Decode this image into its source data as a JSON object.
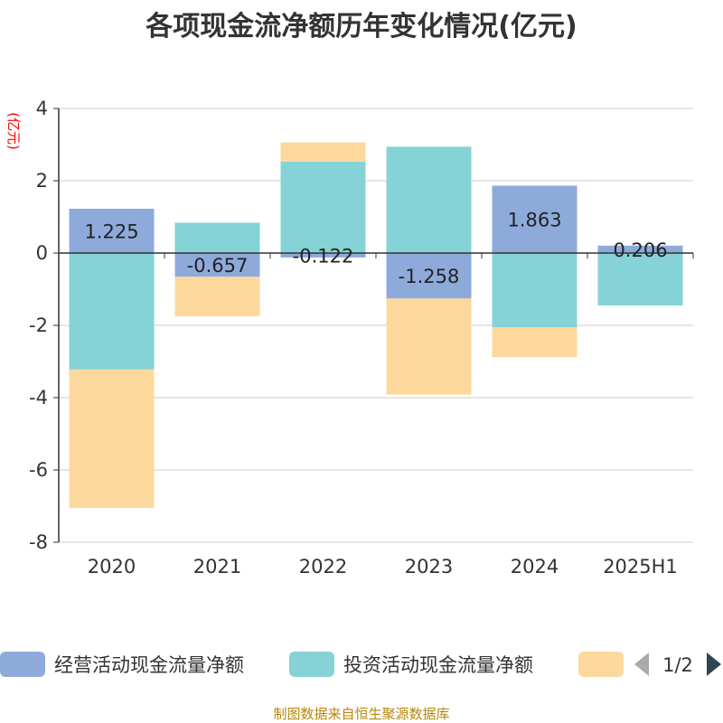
{
  "chart_data": {
    "type": "bar",
    "stacked": true,
    "title": "各项现金流净额历年变化情况(亿元)",
    "ylabel": "(亿元)",
    "categories": [
      "2020",
      "2021",
      "2022",
      "2023",
      "2024",
      "2025H1"
    ],
    "ylim": [
      -8,
      4
    ],
    "yticks": [
      4,
      2,
      0,
      -2,
      -4,
      -6,
      -8
    ],
    "grid": true,
    "series": [
      {
        "name": "经营活动现金流量净额",
        "color": "#8eaadb",
        "values": [
          1.225,
          -0.657,
          -0.122,
          -1.258,
          1.863,
          0.206
        ],
        "labels_shown": true
      },
      {
        "name": "投资活动现金流量净额",
        "color": "#85d3d6",
        "values": [
          -3.22,
          0.84,
          2.53,
          2.94,
          -2.05,
          -1.45
        ],
        "labels_shown": false
      },
      {
        "name": "",
        "color": "#fdd89d",
        "values": [
          -3.83,
          -1.09,
          0.53,
          -2.66,
          -0.83,
          0
        ],
        "labels_shown": false
      }
    ],
    "legend": {
      "position": "bottom",
      "page": "1/2"
    }
  },
  "source": "制图数据来自恒生聚源数据库"
}
